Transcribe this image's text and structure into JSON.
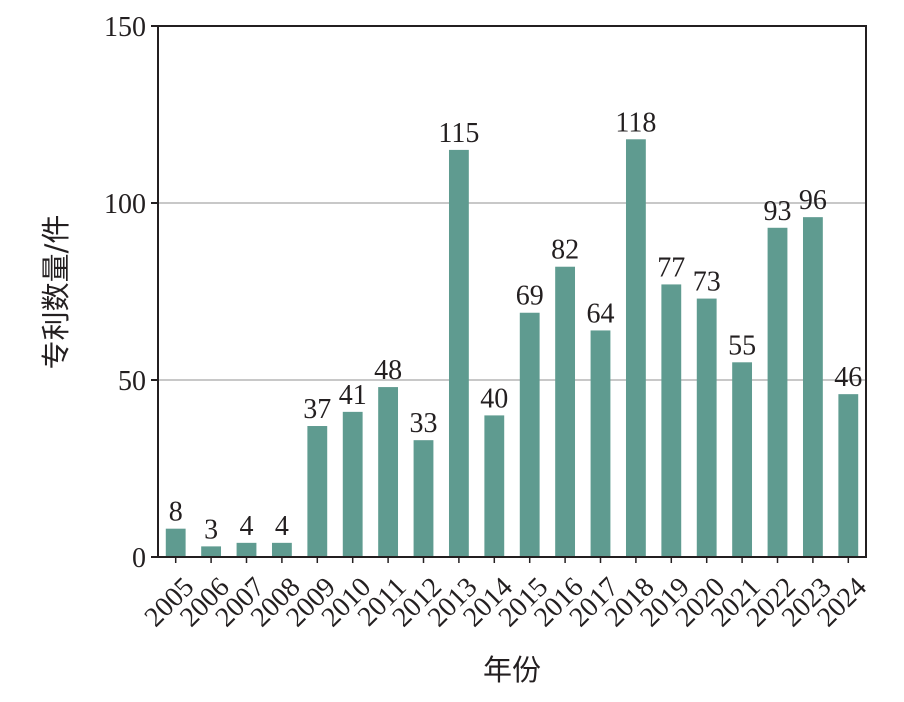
{
  "chart_data": {
    "type": "bar",
    "title": "",
    "xlabel": "年份",
    "ylabel": "专利数量/件",
    "categories": [
      "2005",
      "2006",
      "2007",
      "2008",
      "2009",
      "2010",
      "2011",
      "2012",
      "2013",
      "2014",
      "2015",
      "2016",
      "2017",
      "2018",
      "2019",
      "2020",
      "2021",
      "2022",
      "2023",
      "2024"
    ],
    "values": [
      8,
      3,
      4,
      4,
      37,
      41,
      48,
      33,
      115,
      40,
      69,
      82,
      64,
      118,
      77,
      73,
      55,
      93,
      96,
      46
    ],
    "ylim": [
      0,
      150
    ],
    "yticks": [
      0,
      50,
      100,
      150
    ],
    "grid": true,
    "legend": "none",
    "bar_color": "#5f9b90",
    "grid_color": "#c8c8c8",
    "axis_color": "#231f20"
  }
}
